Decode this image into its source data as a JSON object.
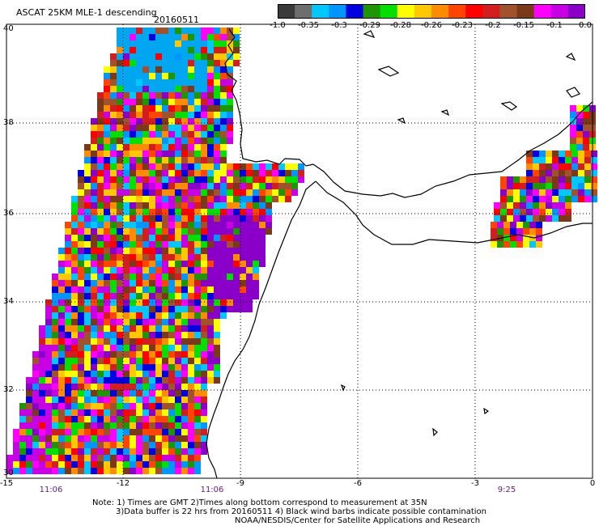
{
  "header": {
    "title": "ASCAT 25KM MLE-1 descending",
    "date": "20160511"
  },
  "colorbar": {
    "colors": [
      "#3a3a3a",
      "#6e6e6e",
      "#00c8ff",
      "#0096ff",
      "#0000e0",
      "#1e9600",
      "#00e000",
      "#ffff00",
      "#ffc800",
      "#ff8c00",
      "#ff4500",
      "#ff0000",
      "#d21e1e",
      "#a0522d",
      "#7a3a1a",
      "#ff00ff",
      "#c800e6",
      "#8a00c8"
    ],
    "labels": [
      "-1.0",
      "-0.35",
      "-0.3",
      "-0.29",
      "-0.28",
      "-0.26",
      "-0.23",
      "-0.2",
      "-0.15",
      "-0.1",
      "0.0"
    ]
  },
  "axes": {
    "lat_labels": [
      "40",
      "38",
      "36",
      "34",
      "32",
      "30"
    ],
    "lon_labels": [
      "-15",
      "-12",
      "-9",
      "-6",
      "-3",
      "0"
    ],
    "lon_range": [
      -15,
      0
    ],
    "lat_range": [
      30,
      40
    ]
  },
  "times": [
    "11:06",
    "11:06",
    "9:25"
  ],
  "notes": {
    "line1": "Note: 1) Times are GMT 2)Times along bottom correspond to measurement at 35N",
    "line2": "3)Data buffer is 22 hrs from 20160511 4) Black wind barbs indicate possible contamination",
    "line3": "NOAA/NESDIS/Center for Satellite Applications and Research"
  }
}
